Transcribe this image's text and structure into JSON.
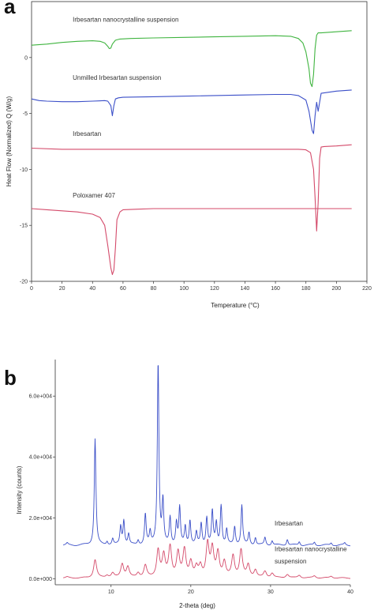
{
  "chart_data": [
    {
      "panel": "a",
      "type": "line",
      "xlabel": "Temperature (°C)",
      "ylabel": "Heat Flow (Normalized) Q (W/g)",
      "xlim": [
        0,
        220
      ],
      "ylim": [
        -20,
        5
      ],
      "x_ticks": [
        "0",
        "20",
        "40",
        "60",
        "80",
        "100",
        "120",
        "140",
        "160",
        "180",
        "200",
        "220"
      ],
      "y_ticks": [
        "0",
        "-5",
        "-10",
        "-15",
        "-20"
      ],
      "grid": false,
      "annotations": [
        {
          "text": "Irbesartan nanocrystalline suspension",
          "x": 27,
          "y": 3.2
        },
        {
          "text": "Unmilled Irbesartan suspension",
          "x": 27,
          "y": -2.0
        },
        {
          "text": "Irbesartan",
          "x": 27,
          "y": -7.0
        },
        {
          "text": "Poloxamer 407",
          "x": 27,
          "y": -12.5
        }
      ],
      "series": [
        {
          "color": "#3fb43f",
          "x": [
            0,
            10,
            20,
            30,
            40,
            45,
            48,
            50,
            51,
            52,
            53,
            55,
            58,
            65,
            80,
            100,
            120,
            140,
            160,
            170,
            175,
            178,
            180,
            182,
            183,
            184,
            185,
            186,
            187,
            188,
            190,
            200,
            210
          ],
          "y": [
            1.1,
            1.2,
            1.35,
            1.45,
            1.5,
            1.45,
            1.3,
            1.0,
            0.8,
            0.85,
            1.2,
            1.55,
            1.65,
            1.7,
            1.75,
            1.8,
            1.85,
            1.9,
            1.95,
            1.9,
            1.7,
            1.3,
            0.5,
            -1.0,
            -2.3,
            -2.6,
            -1.5,
            0.8,
            2.0,
            2.2,
            2.2,
            2.3,
            2.4
          ]
        },
        {
          "color": "#3b4fc8",
          "x": [
            0,
            5,
            10,
            20,
            30,
            40,
            48,
            50,
            52,
            53,
            54,
            55,
            57,
            60,
            80,
            100,
            120,
            140,
            160,
            170,
            175,
            180,
            182,
            184,
            185,
            186,
            187,
            188,
            189,
            190,
            200,
            210
          ],
          "y": [
            -3.7,
            -3.85,
            -3.9,
            -3.95,
            -3.95,
            -3.9,
            -3.85,
            -3.9,
            -4.3,
            -5.2,
            -4.3,
            -3.7,
            -3.6,
            -3.55,
            -3.5,
            -3.45,
            -3.4,
            -3.35,
            -3.3,
            -3.3,
            -3.4,
            -3.8,
            -4.8,
            -6.5,
            -6.8,
            -5.2,
            -4.0,
            -4.8,
            -4.0,
            -3.2,
            -3.0,
            -2.9
          ]
        },
        {
          "color": "#d44a6a",
          "x": [
            0,
            20,
            40,
            60,
            80,
            100,
            120,
            140,
            160,
            175,
            180,
            183,
            185,
            186,
            187,
            188,
            189,
            190,
            192,
            200,
            210
          ],
          "y": [
            -8.1,
            -8.2,
            -8.2,
            -8.2,
            -8.2,
            -8.2,
            -8.2,
            -8.2,
            -8.2,
            -8.2,
            -8.25,
            -8.5,
            -10.0,
            -12.5,
            -15.5,
            -13.0,
            -9.0,
            -8.0,
            -7.95,
            -7.9,
            -7.8
          ]
        },
        {
          "color": "#d44a6a",
          "x": [
            0,
            10,
            20,
            30,
            40,
            45,
            48,
            50,
            52,
            53,
            54,
            55,
            56,
            58,
            60,
            70,
            80,
            100,
            120,
            140,
            160,
            180,
            200,
            210
          ],
          "y": [
            -13.5,
            -13.6,
            -13.7,
            -13.8,
            -14.0,
            -14.3,
            -15.0,
            -16.8,
            -18.8,
            -19.4,
            -19.0,
            -17.0,
            -14.5,
            -13.8,
            -13.6,
            -13.55,
            -13.5,
            -13.5,
            -13.5,
            -13.5,
            -13.5,
            -13.5,
            -13.5,
            -13.5
          ]
        }
      ]
    },
    {
      "panel": "b",
      "type": "line",
      "xlabel": "2-theta (deg)",
      "ylabel": "Intensity (counts)",
      "xlim": [
        3,
        40
      ],
      "ylim": [
        -2000,
        72000
      ],
      "x_ticks": [
        "10",
        "20",
        "30",
        "40"
      ],
      "y_ticks": [
        "0.0e+000",
        "2.0e+004",
        "4.0e+004",
        "6.0e+004"
      ],
      "grid": false,
      "annotations": [
        {
          "text": "Irbesartan",
          "x": 30.5,
          "y": 17500
        },
        {
          "text": "Irbesartan nanocrystalline",
          "x": 30.5,
          "y": 9000
        },
        {
          "text": "suspension",
          "x": 30.5,
          "y": 5000
        }
      ],
      "series": [
        {
          "name": "Irbesartan",
          "color": "#3b4fc8",
          "baseline": 11000,
          "peaks": [
            [
              4.5,
              600
            ],
            [
              8.0,
              35000
            ],
            [
              9.5,
              1200
            ],
            [
              10.2,
              2000
            ],
            [
              11.2,
              6000
            ],
            [
              11.6,
              8000
            ],
            [
              12.2,
              3500
            ],
            [
              13.4,
              1500
            ],
            [
              14.3,
              10000
            ],
            [
              14.9,
              4000
            ],
            [
              15.9,
              60000
            ],
            [
              16.5,
              14000
            ],
            [
              17.4,
              9000
            ],
            [
              18.2,
              7000
            ],
            [
              18.6,
              12000
            ],
            [
              19.3,
              6000
            ],
            [
              19.9,
              8000
            ],
            [
              20.7,
              4000
            ],
            [
              21.3,
              7000
            ],
            [
              22.0,
              9000
            ],
            [
              22.7,
              11000
            ],
            [
              23.2,
              7000
            ],
            [
              23.8,
              13000
            ],
            [
              24.5,
              5000
            ],
            [
              25.5,
              6000
            ],
            [
              26.4,
              13000
            ],
            [
              27.3,
              4000
            ],
            [
              28.1,
              2500
            ],
            [
              29.3,
              2500
            ],
            [
              30.2,
              1500
            ],
            [
              32.1,
              2000
            ],
            [
              33.6,
              1200
            ],
            [
              35.5,
              1000
            ],
            [
              37.6,
              800
            ],
            [
              39.3,
              700
            ]
          ],
          "width": 0.12
        },
        {
          "name": "Irbesartan nanocrystalline suspension",
          "color": "#d44a6a",
          "baseline": 200,
          "peaks": [
            [
              4.5,
              300
            ],
            [
              8.0,
              6000
            ],
            [
              9.5,
              800
            ],
            [
              10.2,
              1500
            ],
            [
              11.4,
              4500
            ],
            [
              12.1,
              3500
            ],
            [
              13.4,
              1500
            ],
            [
              14.3,
              4000
            ],
            [
              15.9,
              9000
            ],
            [
              16.6,
              7000
            ],
            [
              17.4,
              10000
            ],
            [
              18.4,
              8000
            ],
            [
              19.2,
              9000
            ],
            [
              20.0,
              5000
            ],
            [
              20.7,
              3000
            ],
            [
              21.2,
              3500
            ],
            [
              22.1,
              11000
            ],
            [
              22.7,
              9000
            ],
            [
              23.4,
              8000
            ],
            [
              24.2,
              5000
            ],
            [
              25.3,
              7000
            ],
            [
              26.3,
              9000
            ],
            [
              27.2,
              4000
            ],
            [
              28.1,
              2500
            ],
            [
              29.3,
              2000
            ],
            [
              30.2,
              1500
            ],
            [
              32.1,
              1200
            ],
            [
              33.6,
              900
            ],
            [
              35.5,
              700
            ],
            [
              37.6,
              600
            ]
          ],
          "width": 0.22
        }
      ]
    }
  ],
  "panels": {
    "a": {
      "letter": "a"
    },
    "b": {
      "letter": "b"
    }
  }
}
